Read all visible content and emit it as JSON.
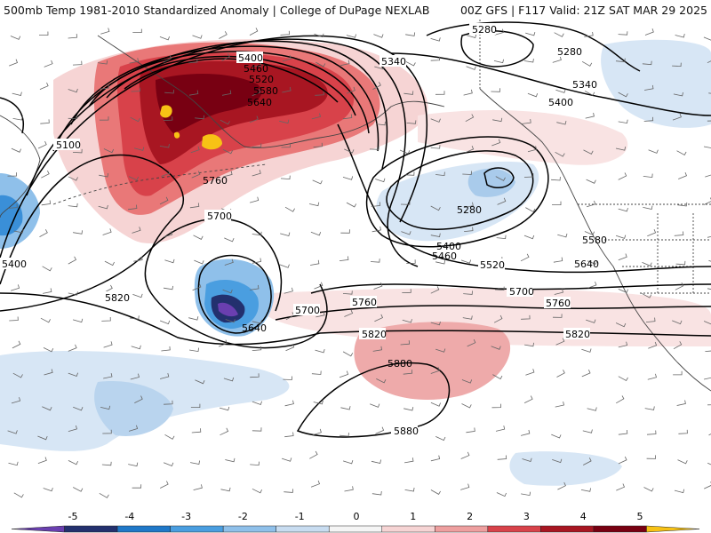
{
  "header": {
    "title_left": "500mb Temp 1981-2010 Standardized Anomaly | College of DuPage NEXLAB",
    "title_right": "00Z GFS | F117 Valid: 21Z SAT MAR 29 2025"
  },
  "contour_labels": [
    "5280",
    "5400",
    "5460",
    "5520",
    "5580",
    "5640",
    "5100",
    "5760",
    "5700",
    "5340",
    "5280",
    "5400",
    "5340",
    "5280",
    "5400",
    "5460",
    "5520",
    "5580",
    "5640",
    "5700",
    "5760",
    "5820",
    "5820",
    "5700",
    "5760",
    "5640",
    "5400",
    "5820",
    "5880",
    "5880"
  ],
  "colorbar": {
    "ticks": [
      "-5",
      "-4",
      "-3",
      "-2",
      "-1",
      "0",
      "1",
      "2",
      "3",
      "4",
      "5"
    ],
    "colors": [
      "#6a3fb0",
      "#23306e",
      "#1f78c8",
      "#4a9ee0",
      "#8fc0ea",
      "#c8dcf0",
      "#f5f5f5",
      "#f6d4d4",
      "#ee9f9f",
      "#d8424a",
      "#a81622",
      "#780012",
      "#f7c215"
    ]
  },
  "colors": {
    "land_line": "#444444",
    "contour": "#000000",
    "barb": "#555555"
  }
}
